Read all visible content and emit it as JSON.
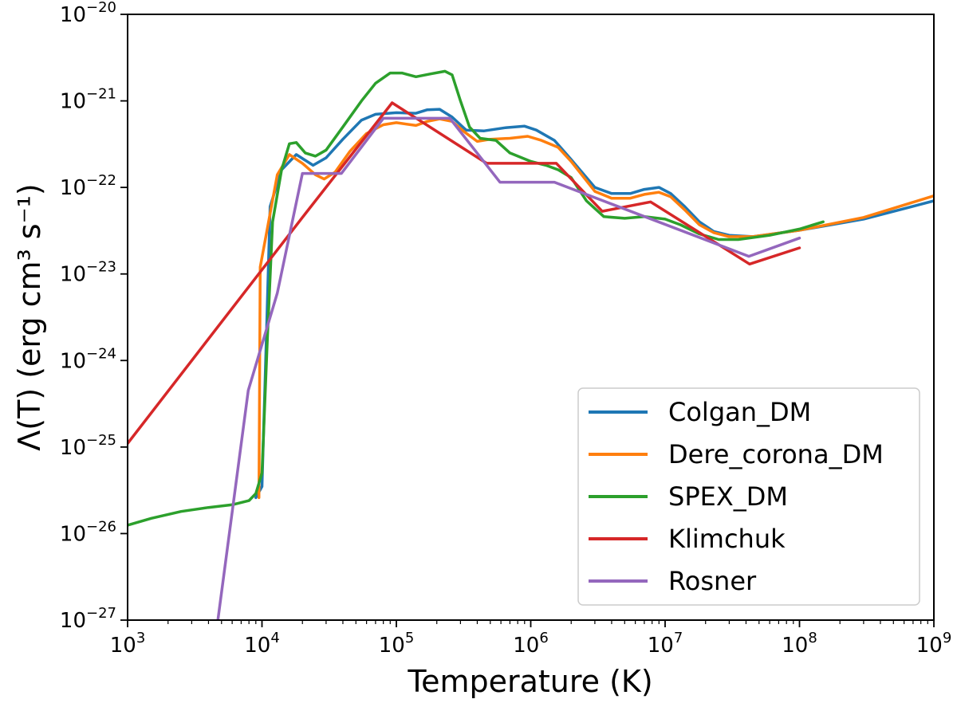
{
  "chart_data": {
    "type": "line",
    "title": "",
    "xlabel": "Temperature (K)",
    "ylabel": "Λ(T) (erg cm³ s⁻¹)",
    "xscale": "log",
    "yscale": "log",
    "xlim": [
      1000,
      1000000000
    ],
    "ylim": [
      1e-27,
      1e-20
    ],
    "x_ticks": [
      {
        "base": "10",
        "exp": "3"
      },
      {
        "base": "10",
        "exp": "4"
      },
      {
        "base": "10",
        "exp": "5"
      },
      {
        "base": "10",
        "exp": "6"
      },
      {
        "base": "10",
        "exp": "7"
      },
      {
        "base": "10",
        "exp": "8"
      },
      {
        "base": "10",
        "exp": "9"
      }
    ],
    "y_ticks": [
      {
        "base": "10",
        "exp": "−27"
      },
      {
        "base": "10",
        "exp": "−26"
      },
      {
        "base": "10",
        "exp": "−25"
      },
      {
        "base": "10",
        "exp": "−24"
      },
      {
        "base": "10",
        "exp": "−23"
      },
      {
        "base": "10",
        "exp": "−22"
      },
      {
        "base": "10",
        "exp": "−21"
      },
      {
        "base": "10",
        "exp": "−20"
      }
    ],
    "legend_position": "lower-right",
    "grid": false,
    "series": [
      {
        "name": "Colgan_DM",
        "color": "#1f77b4",
        "points": [
          [
            9000.0,
            2.6e-26
          ],
          [
            10000.0,
            3.5e-26
          ],
          [
            10800.0,
            2e-24
          ],
          [
            11500.0,
            6e-23
          ],
          [
            14000.0,
            1.6e-22
          ],
          [
            18000.0,
            2.4e-22
          ],
          [
            24000.0,
            1.8e-22
          ],
          [
            30000.0,
            2.2e-22
          ],
          [
            40000.0,
            3.6e-22
          ],
          [
            55000.0,
            6e-22
          ],
          [
            70000.0,
            7e-22
          ],
          [
            100000.0,
            7.3e-22
          ],
          [
            140000.0,
            7.2e-22
          ],
          [
            170000.0,
            7.9e-22
          ],
          [
            210000.0,
            8e-22
          ],
          [
            260000.0,
            6.5e-22
          ],
          [
            330000.0,
            4.6e-22
          ],
          [
            450000.0,
            4.5e-22
          ],
          [
            650000.0,
            4.9e-22
          ],
          [
            900000.0,
            5.1e-22
          ],
          [
            1100000.0,
            4.6e-22
          ],
          [
            1500000.0,
            3.5e-22
          ],
          [
            2000000.0,
            2.1e-22
          ],
          [
            3000000.0,
            1e-22
          ],
          [
            4000000.0,
            8.5e-23
          ],
          [
            5500000.0,
            8.5e-23
          ],
          [
            7000000.0,
            9.5e-23
          ],
          [
            9000000.0,
            1e-22
          ],
          [
            11000000.0,
            8.5e-23
          ],
          [
            14000000.0,
            6e-23
          ],
          [
            18000000.0,
            4e-23
          ],
          [
            23000000.0,
            3.1e-23
          ],
          [
            30000000.0,
            2.8e-23
          ],
          [
            45000000.0,
            2.7e-23
          ],
          [
            100000000.0,
            3.2e-23
          ],
          [
            300000000.0,
            4.3e-23
          ],
          [
            1000000000.0,
            7e-23
          ]
        ]
      },
      {
        "name": "Dere_corona_DM",
        "color": "#ff7f0e",
        "points": [
          [
            9500.0,
            2.6e-26
          ],
          [
            9700.0,
            1.2e-23
          ],
          [
            11500.0,
            5e-23
          ],
          [
            13000.0,
            1.4e-22
          ],
          [
            16000.0,
            2.4e-22
          ],
          [
            20000.0,
            1.9e-22
          ],
          [
            25000.0,
            1.4e-22
          ],
          [
            29000.0,
            1.25e-22
          ],
          [
            35000.0,
            1.5e-22
          ],
          [
            45000.0,
            2.6e-22
          ],
          [
            60000.0,
            4.2e-22
          ],
          [
            80000.0,
            5.3e-22
          ],
          [
            100000.0,
            5.6e-22
          ],
          [
            140000.0,
            5.2e-22
          ],
          [
            170000.0,
            5.8e-22
          ],
          [
            210000.0,
            6.2e-22
          ],
          [
            260000.0,
            5.8e-22
          ],
          [
            320000.0,
            4.4e-22
          ],
          [
            400000.0,
            3.4e-22
          ],
          [
            500000.0,
            3.6e-22
          ],
          [
            700000.0,
            3.7e-22
          ],
          [
            950000.0,
            3.9e-22
          ],
          [
            1200000.0,
            3.5e-22
          ],
          [
            1600000.0,
            2.9e-22
          ],
          [
            2000000.0,
            2e-22
          ],
          [
            3000000.0,
            9e-23
          ],
          [
            4000000.0,
            7.5e-23
          ],
          [
            5500000.0,
            7.5e-23
          ],
          [
            7000000.0,
            8.3e-23
          ],
          [
            9000000.0,
            8.8e-23
          ],
          [
            11000000.0,
            7.8e-23
          ],
          [
            14000000.0,
            5.5e-23
          ],
          [
            18000000.0,
            3.7e-23
          ],
          [
            23000000.0,
            3e-23
          ],
          [
            30000000.0,
            2.7e-23
          ],
          [
            45000000.0,
            2.7e-23
          ],
          [
            100000000.0,
            3.2e-23
          ],
          [
            300000000.0,
            4.5e-23
          ],
          [
            1000000000.0,
            8e-23
          ]
        ]
      },
      {
        "name": "SPEX_DM",
        "color": "#2ca02c",
        "points": [
          [
            1000.0,
            1.25e-26
          ],
          [
            1500.0,
            1.5e-26
          ],
          [
            2500.0,
            1.8e-26
          ],
          [
            4000.0,
            2e-26
          ],
          [
            6000.0,
            2.15e-26
          ],
          [
            8000.0,
            2.4e-26
          ],
          [
            9000.0,
            2.9e-26
          ],
          [
            10000.0,
            5e-26
          ],
          [
            11000.0,
            2e-24
          ],
          [
            12000.0,
            4e-23
          ],
          [
            14000.0,
            1.6e-22
          ],
          [
            16000.0,
            3.2e-22
          ],
          [
            18000.0,
            3.3e-22
          ],
          [
            21000.0,
            2.5e-22
          ],
          [
            25000.0,
            2.3e-22
          ],
          [
            30000.0,
            2.7e-22
          ],
          [
            40000.0,
            5e-22
          ],
          [
            55000.0,
            1e-21
          ],
          [
            70000.0,
            1.6e-21
          ],
          [
            90000.0,
            2.1e-21
          ],
          [
            110000.0,
            2.1e-21
          ],
          [
            140000.0,
            1.9e-21
          ],
          [
            180000.0,
            2.05e-21
          ],
          [
            230000.0,
            2.2e-21
          ],
          [
            260000.0,
            2e-21
          ],
          [
            300000.0,
            1e-21
          ],
          [
            350000.0,
            5e-22
          ],
          [
            420000.0,
            3.7e-22
          ],
          [
            550000.0,
            3.5e-22
          ],
          [
            700000.0,
            2.5e-22
          ],
          [
            1000000.0,
            2e-22
          ],
          [
            1300000.0,
            1.8e-22
          ],
          [
            1600000.0,
            1.6e-22
          ],
          [
            2000000.0,
            1.3e-22
          ],
          [
            2600000.0,
            7e-23
          ],
          [
            3500000.0,
            4.6e-23
          ],
          [
            5000000.0,
            4.4e-23
          ],
          [
            7000000.0,
            4.6e-23
          ],
          [
            10000000.0,
            4.3e-23
          ],
          [
            13000000.0,
            3.7e-23
          ],
          [
            18000000.0,
            2.9e-23
          ],
          [
            25000000.0,
            2.5e-23
          ],
          [
            35000000.0,
            2.5e-23
          ],
          [
            60000000.0,
            2.8e-23
          ],
          [
            100000000.0,
            3.3e-23
          ],
          [
            150000000.0,
            4e-23
          ]
        ]
      },
      {
        "name": "Klimchuk",
        "color": "#d62728",
        "points": [
          [
            1000.0,
            1.1e-25
          ],
          [
            20000.0,
            4.5e-23
          ],
          [
            93000.0,
            9.5e-22
          ],
          [
            470000.0,
            1.9e-22
          ],
          [
            1550000.0,
            1.9e-22
          ],
          [
            3400000.0,
            5.3e-23
          ],
          [
            7800000.0,
            6.8e-23
          ],
          [
            42500000.0,
            1.3e-23
          ],
          [
            100000000.0,
            2e-23
          ]
        ]
      },
      {
        "name": "Rosner",
        "color": "#9467bd",
        "points": [
          [
            4700.0,
            1e-27
          ],
          [
            7900.0,
            4.5e-25
          ],
          [
            13000.0,
            6e-24
          ],
          [
            20000.0,
            1.45e-22
          ],
          [
            39000.0,
            1.45e-22
          ],
          [
            80000.0,
            6.3e-22
          ],
          [
            250000.0,
            6.3e-22
          ],
          [
            590000.0,
            1.15e-22
          ],
          [
            1500000.0,
            1.15e-22
          ],
          [
            42000000.0,
            1.6e-23
          ],
          [
            100000000.0,
            2.6e-23
          ]
        ]
      }
    ]
  }
}
